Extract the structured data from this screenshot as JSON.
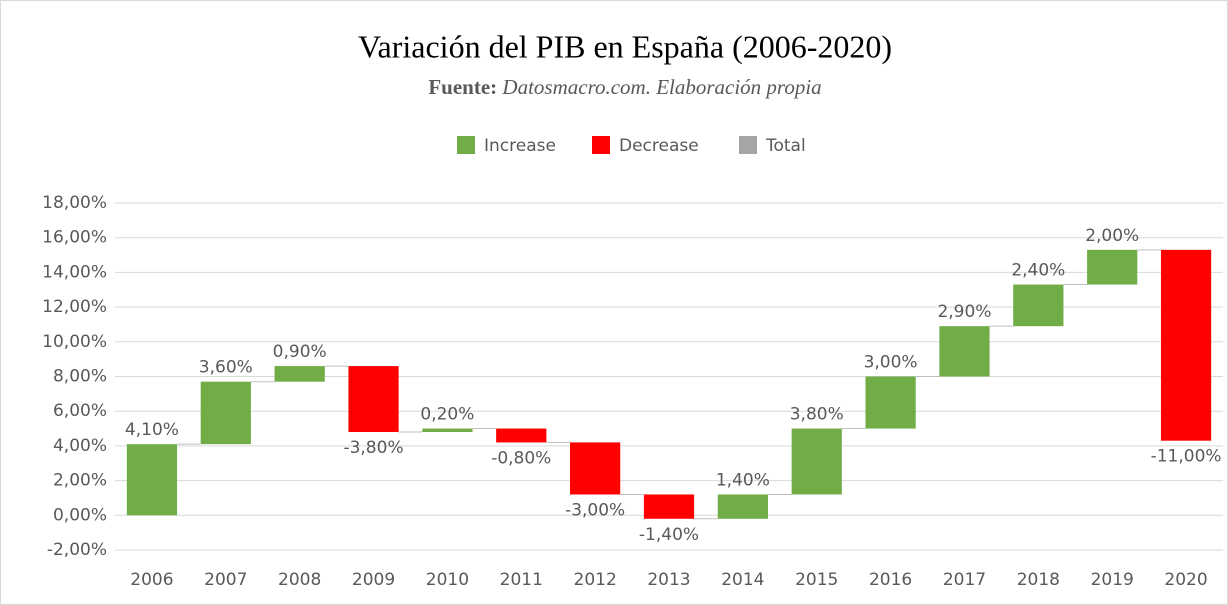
{
  "chart_data": {
    "type": "waterfall",
    "title": "Variación del PIB en España (2006-2020)",
    "subtitle_bold": "Fuente:",
    "subtitle_italic": "Datosmacro.com. Elaboración propia",
    "categories": [
      "2006",
      "2007",
      "2008",
      "2009",
      "2010",
      "2011",
      "2012",
      "2013",
      "2014",
      "2015",
      "2016",
      "2017",
      "2018",
      "2019",
      "2020"
    ],
    "values": [
      4.1,
      3.6,
      0.9,
      -3.8,
      0.2,
      -0.8,
      -3.0,
      -1.4,
      1.4,
      3.8,
      3.0,
      2.9,
      2.4,
      2.0,
      -11.0
    ],
    "value_labels": [
      "4,10%",
      "3,60%",
      "0,90%",
      "-3,80%",
      "0,20%",
      "-0,80%",
      "-3,00%",
      "-1,40%",
      "1,40%",
      "3,80%",
      "3,00%",
      "2,90%",
      "2,40%",
      "2,00%",
      "-11,00%"
    ],
    "legend": [
      {
        "name": "Increase",
        "color": "#70ad47"
      },
      {
        "name": "Decrease",
        "color": "#ff0000"
      },
      {
        "name": "Total",
        "color": "#a5a5a5"
      }
    ],
    "ylim": [
      -2,
      18
    ],
    "yticks": [
      {
        "value": -2,
        "label": "-2,00%"
      },
      {
        "value": 0,
        "label": "0,00%"
      },
      {
        "value": 2,
        "label": "2,00%"
      },
      {
        "value": 4,
        "label": "4,00%"
      },
      {
        "value": 6,
        "label": "6,00%"
      },
      {
        "value": 8,
        "label": "8,00%"
      },
      {
        "value": 10,
        "label": "10,00%"
      },
      {
        "value": 12,
        "label": "12,00%"
      },
      {
        "value": 14,
        "label": "14,00%"
      },
      {
        "value": 16,
        "label": "16,00%"
      },
      {
        "value": 18,
        "label": "18,00%"
      }
    ],
    "grid": true
  }
}
